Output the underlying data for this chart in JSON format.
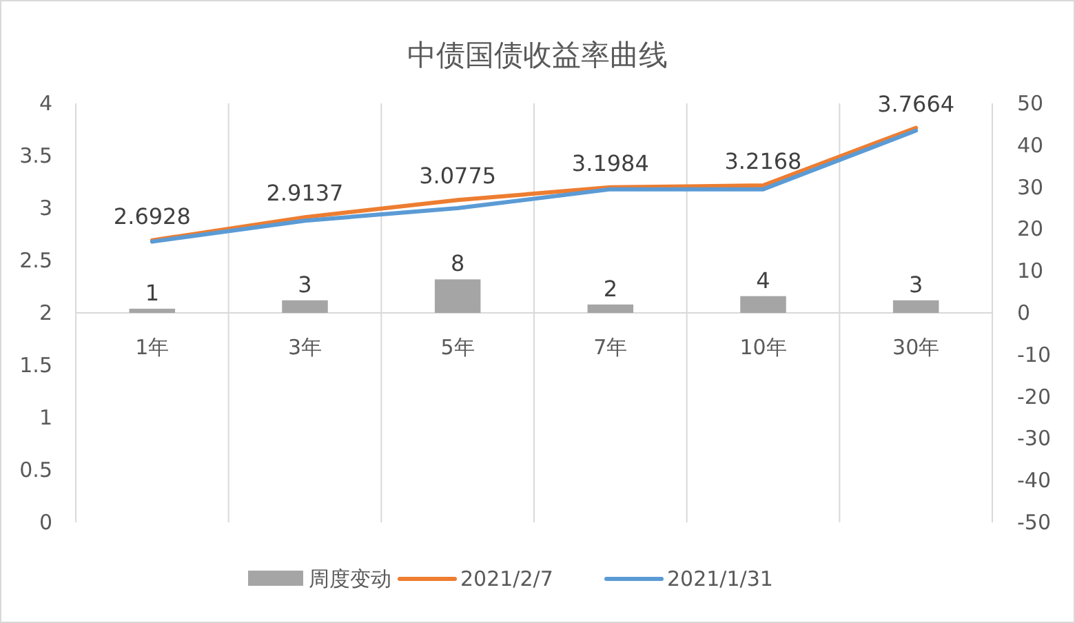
{
  "chart_data": {
    "type": "line",
    "title": "中债国债收益率曲线",
    "categories": [
      "1年",
      "3年",
      "5年",
      "7年",
      "10年",
      "30年"
    ],
    "series": [
      {
        "name": "周度变动",
        "type": "bar",
        "axis": "y2",
        "color": "#a5a5a5",
        "values": [
          1,
          3,
          8,
          2,
          4,
          3
        ],
        "value_labels": [
          "1",
          "3",
          "8",
          "2",
          "4",
          "3"
        ]
      },
      {
        "name": "2021/2/7",
        "color": "#ed7d31",
        "values": [
          2.6928,
          2.9137,
          3.0775,
          3.1984,
          3.2168,
          3.7664
        ],
        "value_labels": [
          "2.6928",
          "2.9137",
          "3.0775",
          "3.1984",
          "3.2168",
          "3.7664"
        ]
      },
      {
        "name": "2021/1/31",
        "color": "#5b9bd5",
        "values": [
          2.68,
          2.88,
          3.0,
          3.18,
          3.18,
          3.74
        ]
      }
    ],
    "ylim": [
      0,
      4
    ],
    "yticks": [
      0,
      0.5,
      1,
      1.5,
      2,
      2.5,
      3,
      3.5,
      4
    ],
    "y2lim": [
      -50,
      50
    ],
    "y2ticks": [
      -50,
      -40,
      -30,
      -20,
      -10,
      0,
      10,
      20,
      30,
      40,
      50
    ],
    "grid": "x",
    "legend": "bottom",
    "marker": "none",
    "line_style": "solid"
  }
}
